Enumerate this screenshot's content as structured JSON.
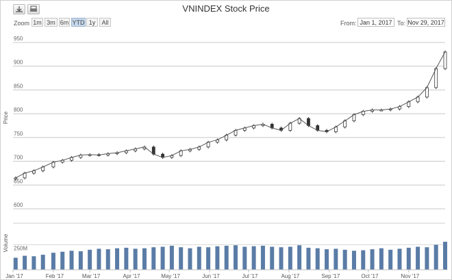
{
  "title": "VNINDEX Stock Price",
  "zoom": {
    "label": "Zoom",
    "buttons": [
      "1m",
      "3m",
      "6m",
      "YTD",
      "1y",
      "All"
    ],
    "active": "YTD"
  },
  "range": {
    "from_label": "From:",
    "from_value": "Jan 1, 2017",
    "to_label": "To:",
    "to_value": "Nov 29, 2017"
  },
  "icons": [
    "download-icon",
    "print-icon"
  ],
  "chart_data": {
    "type": "line",
    "title": "VNINDEX Stock Price",
    "price_axis": {
      "label": "Price",
      "ticks": [
        "600",
        "650",
        "700",
        "750",
        "800",
        "850",
        "900",
        "950"
      ],
      "range": [
        600,
        960
      ]
    },
    "volume_axis": {
      "label": "Volume",
      "ticks": [
        "250M"
      ],
      "range": [
        0,
        370
      ]
    },
    "x_axis": {
      "labels": [
        "Jan '17",
        "Feb '17",
        "Mar '17",
        "Apr '17",
        "May '17",
        "Jun '17",
        "Jul '17",
        "Aug '17",
        "Sep '17",
        "Oct '17",
        "Nov '17"
      ],
      "start": "2017-01-01",
      "end": "2017-11-29"
    },
    "x": [
      "2017-01-03",
      "2017-01-10",
      "2017-01-17",
      "2017-01-24",
      "2017-02-01",
      "2017-02-08",
      "2017-02-15",
      "2017-02-22",
      "2017-03-01",
      "2017-03-08",
      "2017-03-15",
      "2017-03-22",
      "2017-03-29",
      "2017-04-05",
      "2017-04-12",
      "2017-04-19",
      "2017-04-26",
      "2017-05-03",
      "2017-05-10",
      "2017-05-17",
      "2017-05-24",
      "2017-05-31",
      "2017-06-07",
      "2017-06-14",
      "2017-06-21",
      "2017-06-28",
      "2017-07-05",
      "2017-07-12",
      "2017-07-19",
      "2017-07-26",
      "2017-08-02",
      "2017-08-09",
      "2017-08-16",
      "2017-08-23",
      "2017-08-30",
      "2017-09-06",
      "2017-09-13",
      "2017-09-20",
      "2017-09-27",
      "2017-10-04",
      "2017-10-11",
      "2017-10-18",
      "2017-10-25",
      "2017-11-01",
      "2017-11-08",
      "2017-11-15",
      "2017-11-22",
      "2017-11-29"
    ],
    "series": [
      {
        "name": "Price",
        "values": [
          665,
          675,
          680,
          688,
          698,
          702,
          708,
          713,
          714,
          713,
          716,
          718,
          722,
          726,
          730,
          715,
          708,
          712,
          722,
          725,
          730,
          740,
          745,
          755,
          765,
          770,
          775,
          778,
          770,
          765,
          780,
          790,
          775,
          765,
          762,
          772,
          785,
          798,
          805,
          808,
          808,
          810,
          815,
          825,
          835,
          855,
          895,
          930
        ]
      },
      {
        "name": "Volume",
        "values": [
          120,
          140,
          135,
          150,
          170,
          180,
          190,
          185,
          200,
          210,
          205,
          215,
          220,
          210,
          215,
          225,
          230,
          240,
          225,
          215,
          230,
          225,
          235,
          240,
          245,
          230,
          235,
          240,
          230,
          225,
          230,
          245,
          220,
          215,
          205,
          210,
          200,
          190,
          195,
          205,
          215,
          200,
          210,
          220,
          230,
          225,
          250,
          280
        ]
      }
    ]
  }
}
